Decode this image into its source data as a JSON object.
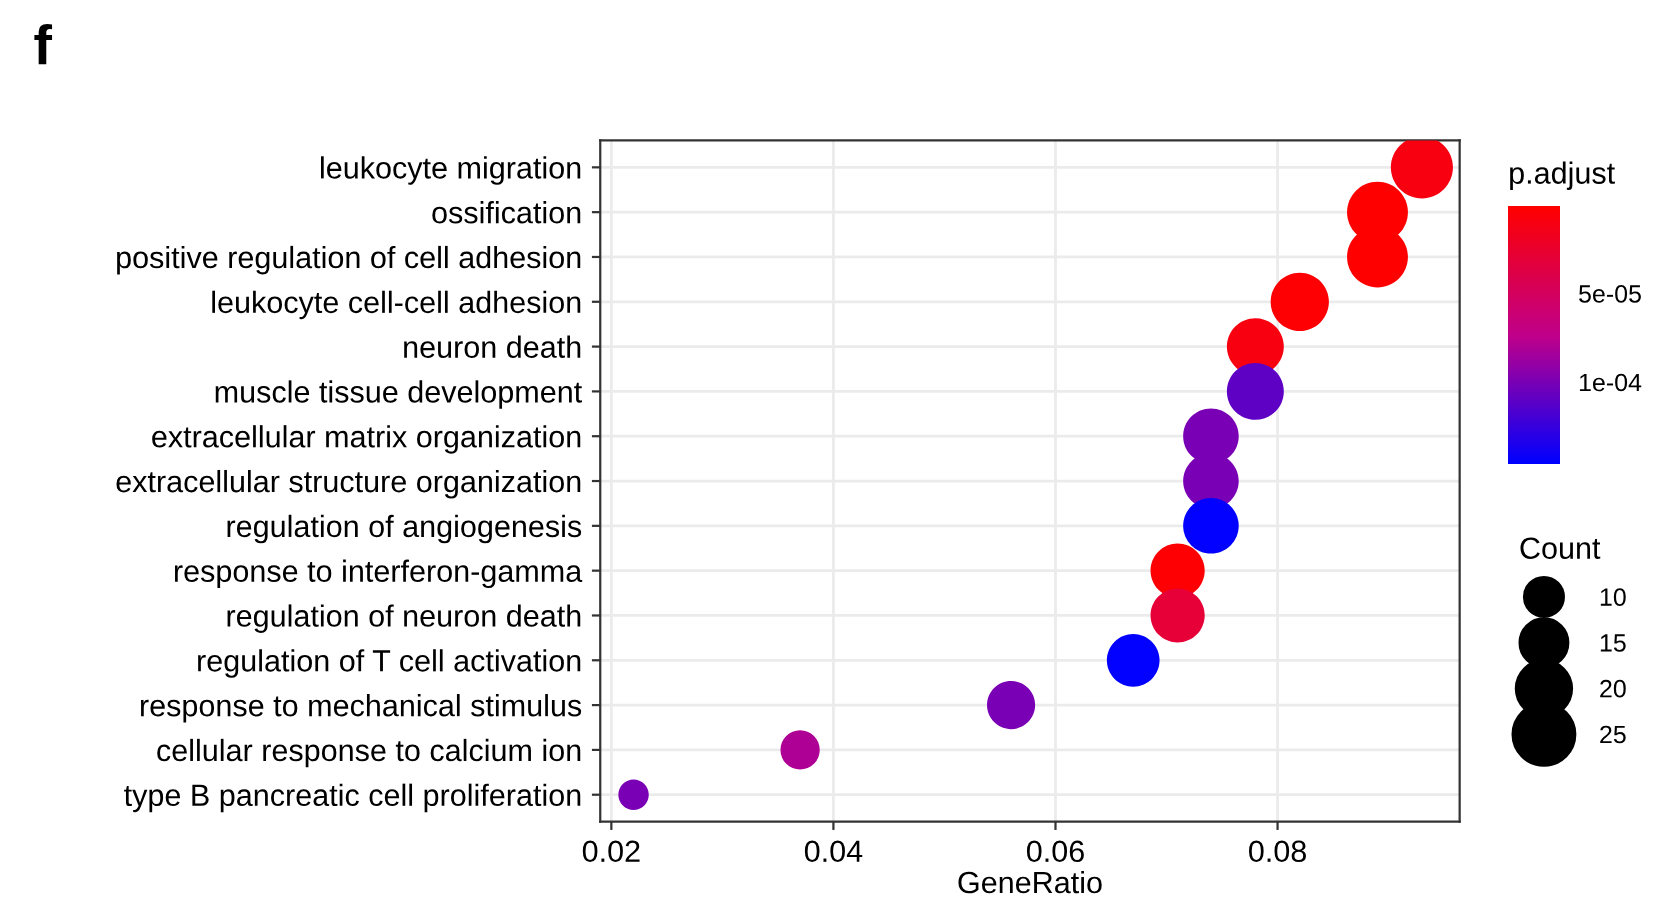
{
  "chart_data": {
    "type": "bubble",
    "title": "f",
    "xlabel": "GeneRatio",
    "clabel": "p.adjust",
    "legend_title": "Count",
    "grid": true,
    "categories": [
      "leukocyte migration",
      "ossification",
      "positive regulation of cell adhesion",
      "leukocyte cell-cell adhesion",
      "neuron death",
      "muscle tissue development",
      "extracellular matrix organization",
      "extracellular structure organization",
      "regulation of angiogenesis",
      "response to interferon-gamma",
      "regulation of neuron death",
      "regulation of T cell activation",
      "response to mechanical stimulus",
      "cellular response to calcium ion",
      "type B pancreatic cell proliferation"
    ],
    "orientation": "horizontal",
    "values": [
      0.093,
      0.089,
      0.089,
      0.082,
      0.078,
      0.078,
      0.074,
      0.074,
      0.074,
      0.071,
      0.071,
      0.067,
      0.056,
      0.037,
      0.022
    ],
    "sizes": [
      25,
      24,
      24,
      22,
      21,
      21,
      20,
      20,
      20,
      19,
      19,
      18,
      15,
      10,
      6
    ],
    "size_legend": [
      10,
      15,
      20,
      25
    ],
    "cvalues": [
      1e-05,
      2e-06,
      2e-06,
      3e-06,
      1e-05,
      0.00011,
      0.0001,
      0.0001,
      0.000145,
      3e-06,
      3e-05,
      0.000145,
      0.0001,
      8e-05,
      0.0001
    ],
    "clim": [
      1e-06,
      0.000146
    ],
    "cticks": [
      {
        "value": 5e-05,
        "label": "5e-05"
      },
      {
        "value": 0.0001,
        "label": "1e-04"
      }
    ],
    "xlim": [
      0.019,
      0.0964
    ],
    "xticks": [
      0.02,
      0.04,
      0.06,
      0.08
    ]
  }
}
